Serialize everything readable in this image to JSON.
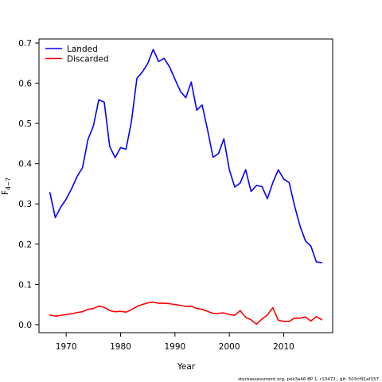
{
  "chart_data": {
    "type": "line",
    "xlabel": "Year",
    "ylabel": "F",
    "ylabel_subscript": "4−7",
    "xlim": [
      1965,
      2019
    ],
    "ylim": [
      -0.02,
      0.71
    ],
    "xticks": [
      1970,
      1980,
      1990,
      2000,
      2010
    ],
    "yticks": [
      0.0,
      0.1,
      0.2,
      0.3,
      0.4,
      0.5,
      0.6,
      0.7
    ],
    "ytick_labels": [
      "0.0",
      "0.1",
      "0.2",
      "0.3",
      "0.4",
      "0.5",
      "0.6",
      "0.7"
    ],
    "legend_position": "top-left",
    "series": [
      {
        "name": "Landed",
        "color": "#0000ff",
        "x": [
          1967,
          1968,
          1969,
          1970,
          1971,
          1972,
          1973,
          1974,
          1975,
          1976,
          1977,
          1978,
          1979,
          1980,
          1981,
          1982,
          1983,
          1984,
          1985,
          1986,
          1987,
          1988,
          1989,
          1990,
          1991,
          1992,
          1993,
          1994,
          1995,
          1996,
          1997,
          1998,
          1999,
          2000,
          2001,
          2002,
          2003,
          2004,
          2005,
          2006,
          2007,
          2008,
          2009,
          2010,
          2011,
          2012,
          2013,
          2014,
          2015,
          2016,
          2017
        ],
        "values": [
          0.328,
          0.266,
          0.292,
          0.312,
          0.338,
          0.368,
          0.39,
          0.46,
          0.494,
          0.559,
          0.553,
          0.443,
          0.415,
          0.44,
          0.436,
          0.505,
          0.612,
          0.628,
          0.649,
          0.684,
          0.654,
          0.662,
          0.641,
          0.61,
          0.58,
          0.564,
          0.603,
          0.533,
          0.546,
          0.484,
          0.416,
          0.425,
          0.462,
          0.385,
          0.342,
          0.352,
          0.385,
          0.331,
          0.346,
          0.343,
          0.313,
          0.353,
          0.385,
          0.362,
          0.353,
          0.295,
          0.245,
          0.208,
          0.195,
          0.156,
          0.154
        ]
      },
      {
        "name": "Discarded",
        "color": "#ff0000",
        "x": [
          1967,
          1968,
          1969,
          1970,
          1971,
          1972,
          1973,
          1974,
          1975,
          1976,
          1977,
          1978,
          1979,
          1980,
          1981,
          1982,
          1983,
          1984,
          1985,
          1986,
          1987,
          1988,
          1989,
          1990,
          1991,
          1992,
          1993,
          1994,
          1995,
          1996,
          1997,
          1998,
          1999,
          2000,
          2001,
          2002,
          2003,
          2004,
          2005,
          2006,
          2007,
          2008,
          2009,
          2010,
          2011,
          2012,
          2013,
          2014,
          2015,
          2016,
          2017
        ],
        "values": [
          0.024,
          0.021,
          0.023,
          0.025,
          0.027,
          0.03,
          0.032,
          0.038,
          0.04,
          0.046,
          0.043,
          0.035,
          0.032,
          0.033,
          0.031,
          0.037,
          0.045,
          0.05,
          0.054,
          0.056,
          0.053,
          0.053,
          0.052,
          0.05,
          0.048,
          0.045,
          0.046,
          0.04,
          0.038,
          0.033,
          0.028,
          0.028,
          0.029,
          0.025,
          0.023,
          0.035,
          0.018,
          0.012,
          0.001,
          0.014,
          0.024,
          0.042,
          0.011,
          0.008,
          0.008,
          0.016,
          0.016,
          0.019,
          0.009,
          0.02,
          0.012
        ]
      }
    ]
  },
  "footer": "stockassessment.org, pok3a46 BP 1, r10472 , git: 503cf91af157"
}
